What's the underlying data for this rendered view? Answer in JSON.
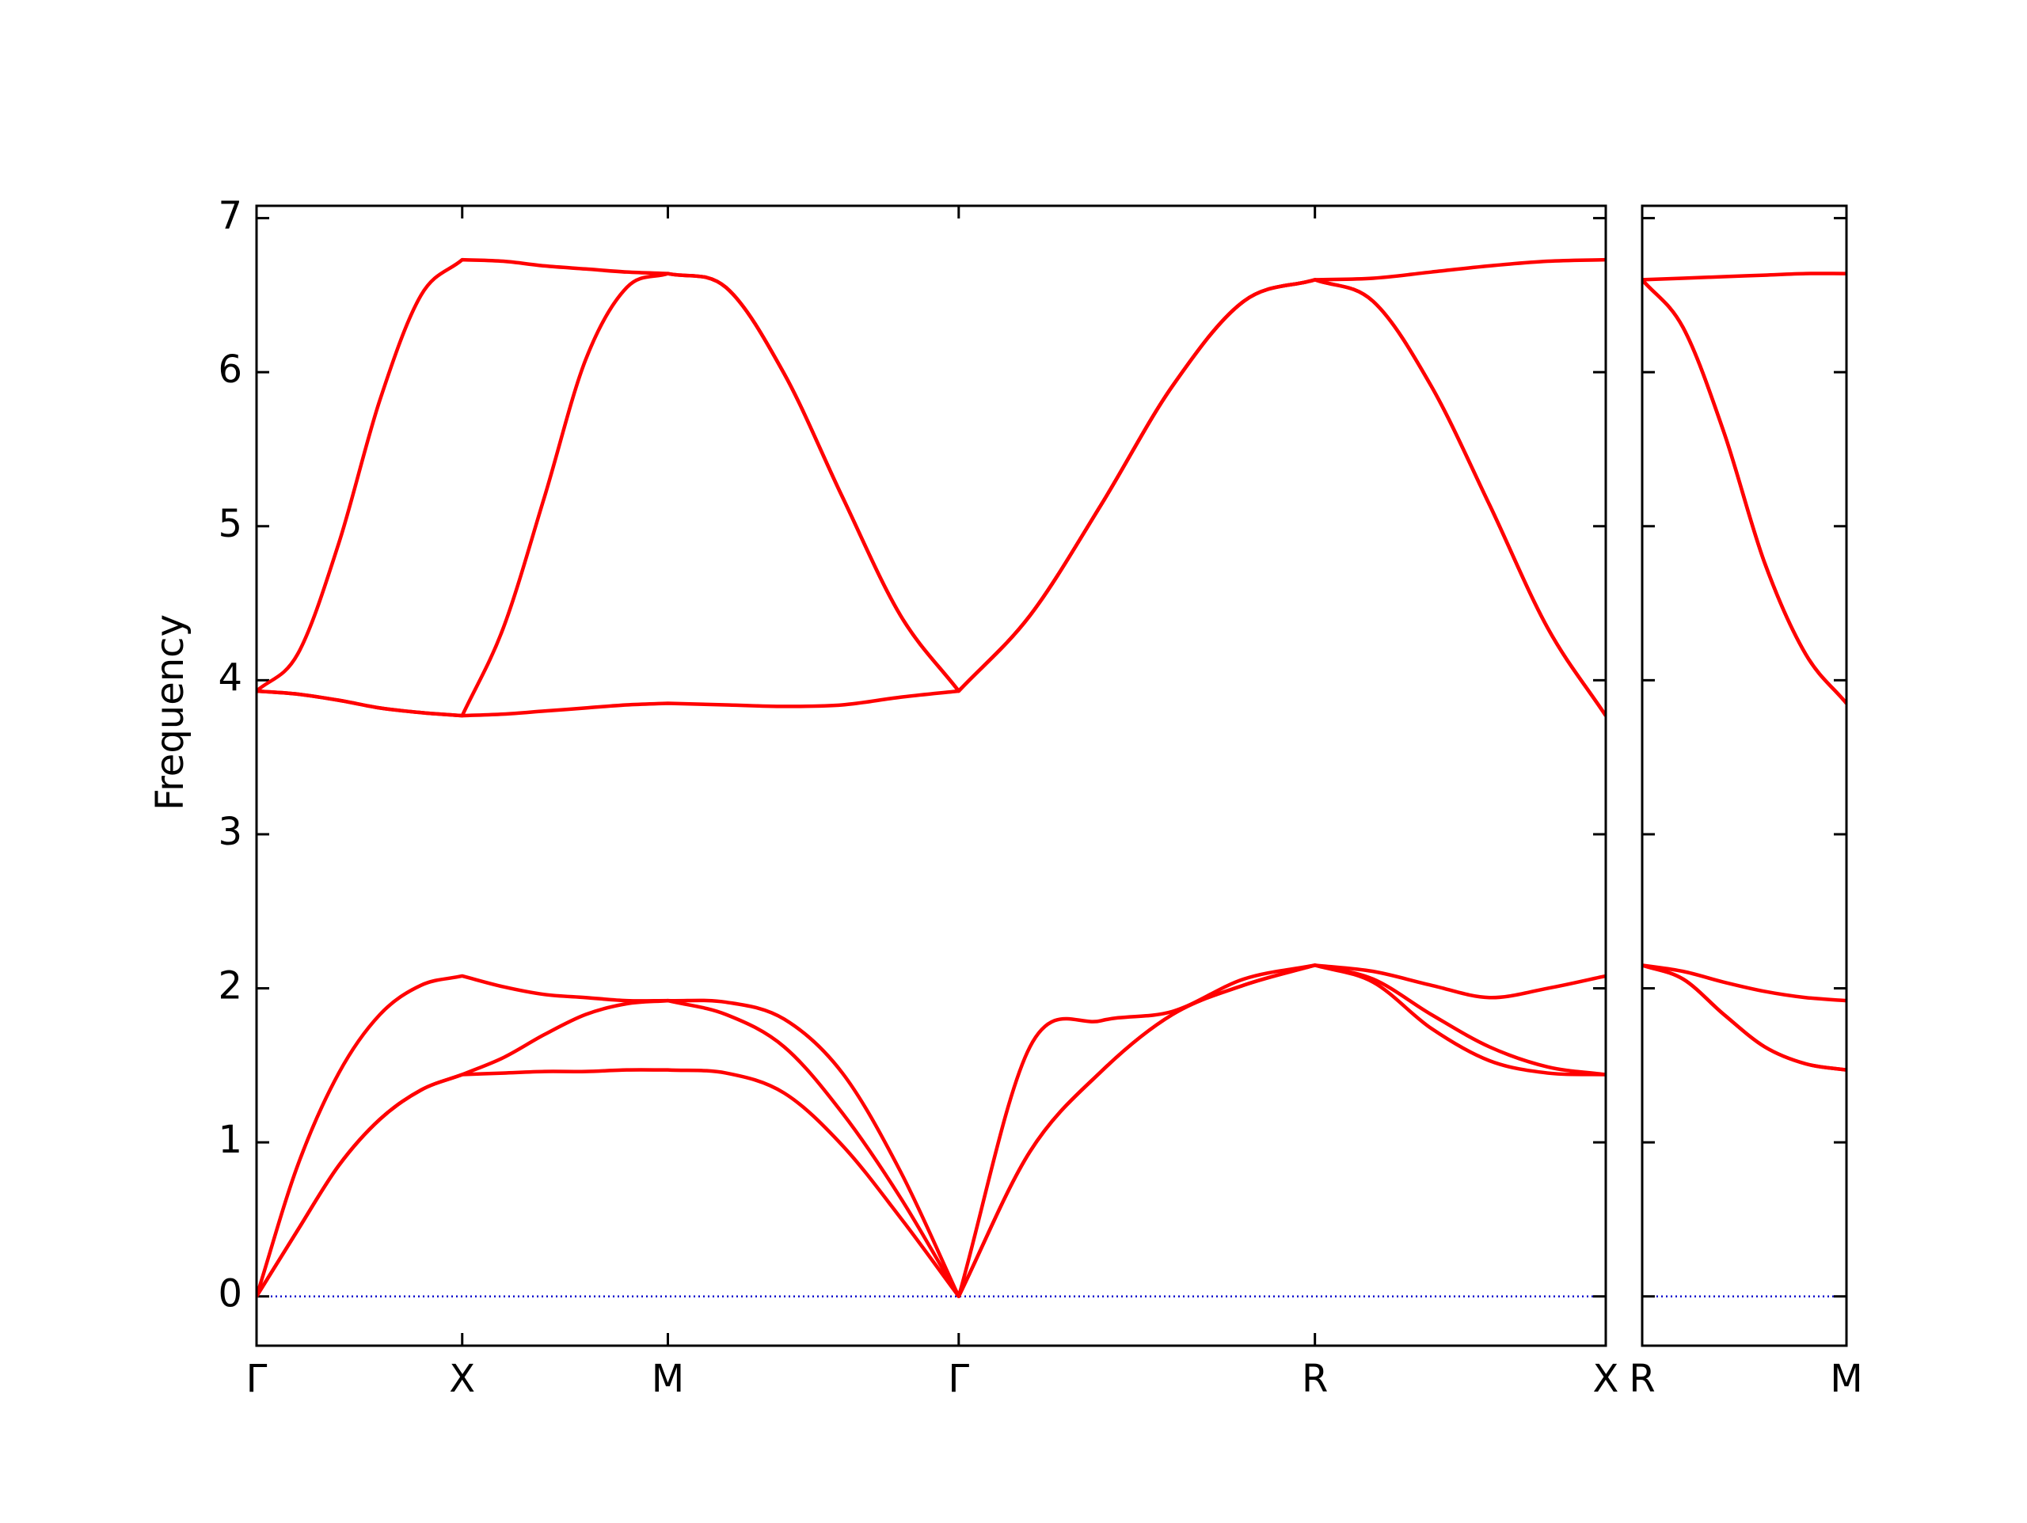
{
  "chart_data": [
    {
      "type": "line",
      "ylabel": "Frequency",
      "x": [
        0,
        0.1,
        0.2,
        0.3,
        0.4,
        0.5,
        0.6,
        0.7,
        0.8,
        0.9,
        1.0,
        1.1414,
        1.2828,
        1.4243,
        1.5657,
        1.7071,
        1.8803,
        2.0535,
        2.2267,
        2.3999,
        2.5731,
        2.7145,
        2.8559,
        2.9974,
        3.1388,
        3.2802
      ],
      "series": [
        {
          "color": "#ff0000",
          "values": [
            0,
            0.43,
            0.85,
            1.15,
            1.34,
            1.44,
            1.45,
            1.46,
            1.46,
            1.47,
            1.47,
            1.45,
            1.32,
            0.98,
            0.51,
            0,
            0.94,
            1.46,
            1.83,
            2.02,
            2.15,
            2.04,
            1.74,
            1.53,
            1.45,
            1.44
          ]
        },
        {
          "color": "#ff0000",
          "values": [
            0,
            0.43,
            0.85,
            1.15,
            1.34,
            1.44,
            1.55,
            1.7,
            1.83,
            1.9,
            1.92,
            1.83,
            1.62,
            1.19,
            0.64,
            0,
            0.94,
            1.46,
            1.83,
            2.02,
            2.15,
            2.06,
            1.83,
            1.62,
            1.49,
            1.44
          ]
        },
        {
          "color": "#ff0000",
          "values": [
            0,
            0.85,
            1.45,
            1.83,
            2.02,
            2.08,
            2.01,
            1.96,
            1.94,
            1.92,
            1.92,
            1.91,
            1.8,
            1.45,
            0.81,
            0,
            1.62,
            1.79,
            1.85,
            2.06,
            2.15,
            2.11,
            2.02,
            1.94,
            2.0,
            2.08
          ]
        },
        {
          "color": "#ff0000",
          "values": [
            3.93,
            3.91,
            3.87,
            3.82,
            3.79,
            3.77,
            3.78,
            3.8,
            3.82,
            3.84,
            3.85,
            3.84,
            3.83,
            3.84,
            3.89,
            3.93,
            4.42,
            5.14,
            5.91,
            6.46,
            6.6,
            6.46,
            5.91,
            5.14,
            4.34,
            3.77
          ]
        },
        {
          "color": "#ff0000",
          "values": [
            3.93,
            3.91,
            3.87,
            3.82,
            3.79,
            3.77,
            4.34,
            5.19,
            6.08,
            6.55,
            6.64,
            6.55,
            5.99,
            5.19,
            4.42,
            3.93,
            4.42,
            5.14,
            5.91,
            6.46,
            6.6,
            6.46,
            5.91,
            5.14,
            4.34,
            3.77
          ]
        },
        {
          "color": "#ff0000",
          "values": [
            3.93,
            4.17,
            4.89,
            5.82,
            6.5,
            6.73,
            6.72,
            6.69,
            6.67,
            6.65,
            6.64,
            6.55,
            5.99,
            5.19,
            4.42,
            3.93,
            4.42,
            5.14,
            5.91,
            6.46,
            6.6,
            6.61,
            6.65,
            6.69,
            6.72,
            6.73
          ]
        }
      ],
      "xlim": [
        0,
        3.2802
      ],
      "xticks": [
        {
          "value": 0,
          "label": "Γ"
        },
        {
          "value": 0.5,
          "label": "X"
        },
        {
          "value": 1.0,
          "label": "M"
        },
        {
          "value": 1.7071,
          "label": "Γ"
        },
        {
          "value": 2.5731,
          "label": "R"
        },
        {
          "value": 3.2802,
          "label": "X"
        }
      ],
      "ylim": [
        -0.32,
        7.08
      ],
      "yticks": [
        0,
        1,
        2,
        3,
        4,
        5,
        6,
        7
      ],
      "show_yticklabels": true,
      "zero_line_color": "#0000cc"
    },
    {
      "type": "line",
      "x": [
        3.2802,
        3.3802,
        3.4802,
        3.5802,
        3.6802,
        3.7802
      ],
      "series": [
        {
          "color": "#ff0000",
          "values": [
            2.15,
            2.06,
            1.83,
            1.62,
            1.51,
            1.47
          ]
        },
        {
          "color": "#ff0000",
          "values": [
            2.15,
            2.06,
            1.83,
            1.62,
            1.51,
            1.47
          ]
        },
        {
          "color": "#ff0000",
          "values": [
            2.15,
            2.11,
            2.04,
            1.98,
            1.94,
            1.92
          ]
        },
        {
          "color": "#ff0000",
          "values": [
            6.6,
            6.29,
            5.61,
            4.76,
            4.17,
            3.85
          ]
        },
        {
          "color": "#ff0000",
          "values": [
            6.6,
            6.29,
            5.61,
            4.76,
            4.17,
            3.85
          ]
        },
        {
          "color": "#ff0000",
          "values": [
            6.6,
            6.61,
            6.62,
            6.63,
            6.64,
            6.64
          ]
        }
      ],
      "xlim": [
        3.2802,
        3.7802
      ],
      "xticks": [
        {
          "value": 3.2802,
          "label": "R"
        },
        {
          "value": 3.7802,
          "label": "M"
        }
      ],
      "ylim": [
        -0.32,
        7.08
      ],
      "yticks": [
        0,
        1,
        2,
        3,
        4,
        5,
        6,
        7
      ],
      "show_yticklabels": false,
      "zero_line_color": "#0000cc"
    }
  ]
}
